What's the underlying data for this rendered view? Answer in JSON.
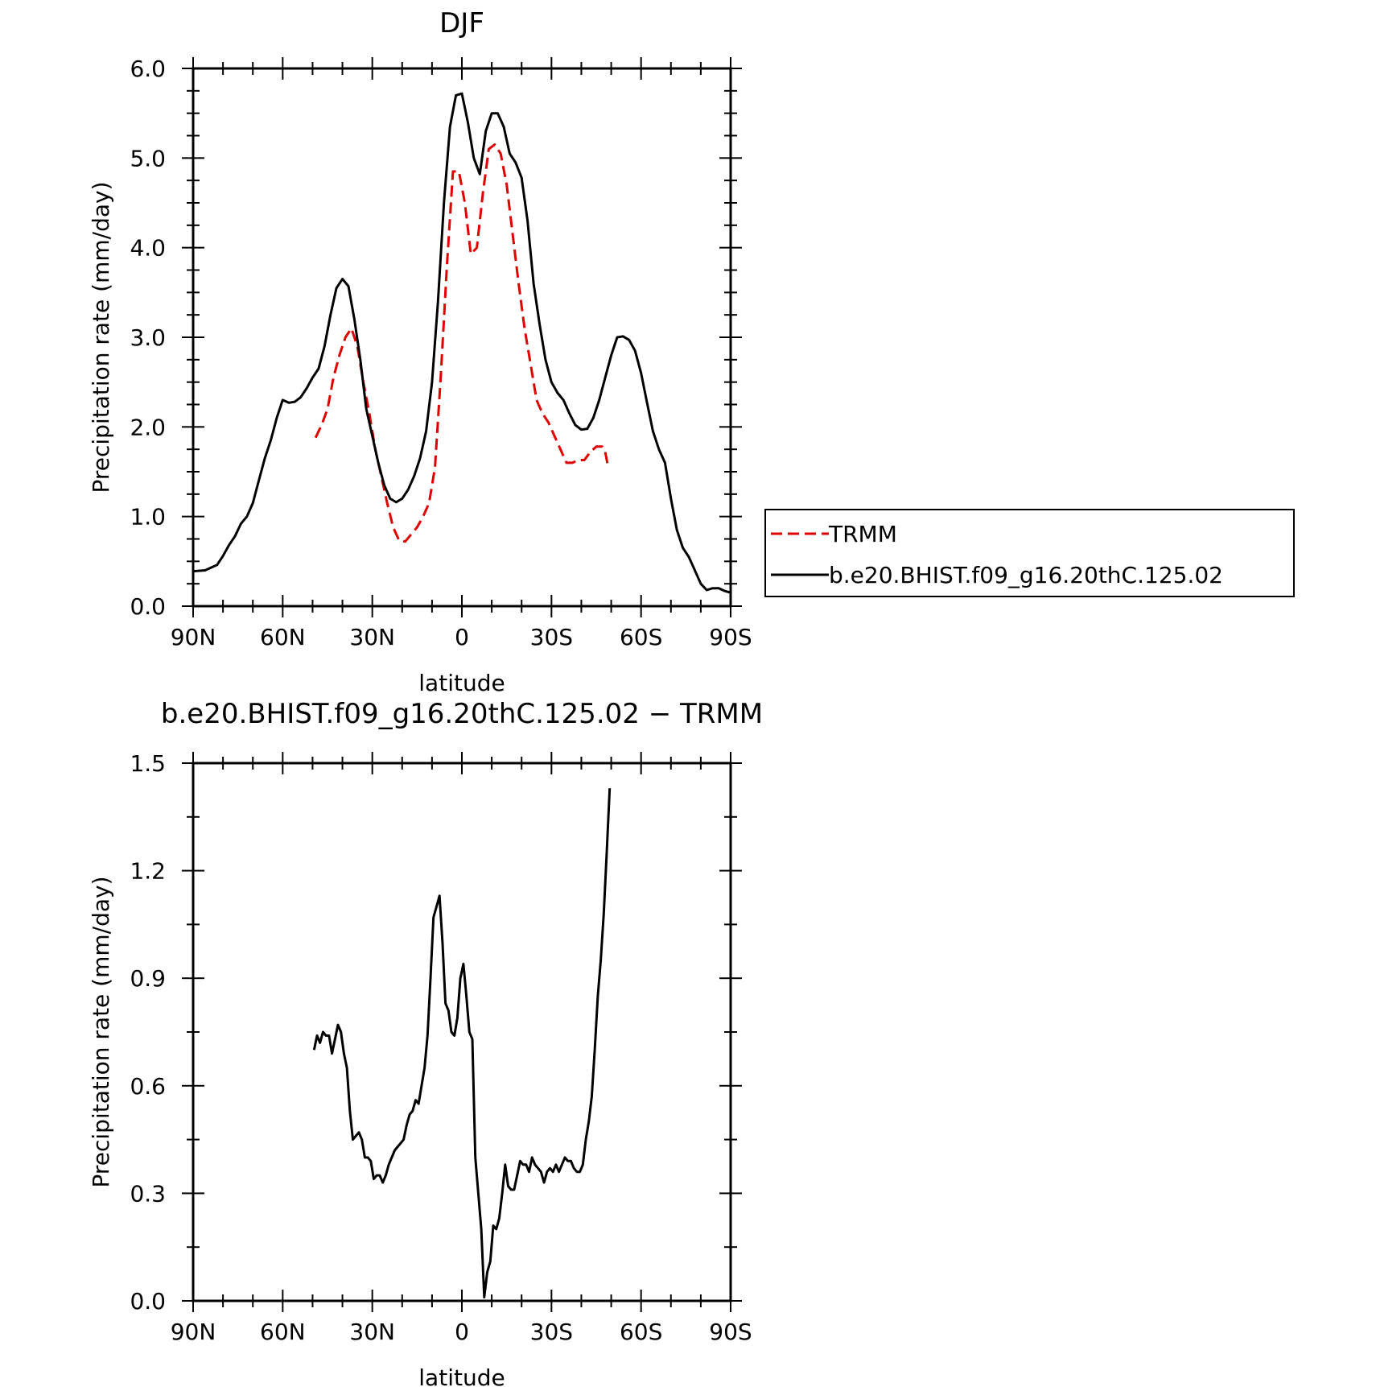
{
  "chart_data": [
    {
      "type": "line",
      "title": "DJF",
      "xlabel": "latitude",
      "ylabel": "Precipitation rate (mm/day)",
      "xlim": [
        90,
        -90
      ],
      "ylim": [
        0,
        6
      ],
      "x_ticks": [
        90,
        60,
        30,
        0,
        -30,
        -60,
        -90
      ],
      "x_tick_labels": [
        "90N",
        "60N",
        "30N",
        "0",
        "30S",
        "60S",
        "90S"
      ],
      "y_ticks": [
        0,
        1,
        2,
        3,
        4,
        5,
        6
      ],
      "y_tick_labels": [
        "0.0",
        "1.0",
        "2.0",
        "3.0",
        "4.0",
        "5.0",
        "6.0"
      ],
      "legend_position": "right",
      "series": [
        {
          "name": "TRMM",
          "color": "#e00000",
          "dash": true,
          "points": [
            [
              49,
              1.88
            ],
            [
              47,
              2.02
            ],
            [
              45,
              2.2
            ],
            [
              43,
              2.55
            ],
            [
              41,
              2.8
            ],
            [
              39,
              3.0
            ],
            [
              37,
              3.1
            ],
            [
              35,
              2.9
            ],
            [
              33,
              2.5
            ],
            [
              31,
              2.15
            ],
            [
              29,
              1.75
            ],
            [
              27,
              1.45
            ],
            [
              25,
              1.15
            ],
            [
              23,
              0.88
            ],
            [
              21,
              0.73
            ],
            [
              19,
              0.72
            ],
            [
              17,
              0.8
            ],
            [
              15,
              0.88
            ],
            [
              13,
              1.0
            ],
            [
              11,
              1.15
            ],
            [
              9,
              1.55
            ],
            [
              7,
              2.6
            ],
            [
              5,
              3.8
            ],
            [
              3,
              4.85
            ],
            [
              1,
              4.85
            ],
            [
              -1,
              4.5
            ],
            [
              -3,
              3.93
            ],
            [
              -5,
              4.0
            ],
            [
              -7,
              4.6
            ],
            [
              -9,
              5.1
            ],
            [
              -11,
              5.15
            ],
            [
              -13,
              5.05
            ],
            [
              -15,
              4.7
            ],
            [
              -17,
              4.15
            ],
            [
              -19,
              3.6
            ],
            [
              -21,
              3.1
            ],
            [
              -23,
              2.7
            ],
            [
              -25,
              2.3
            ],
            [
              -27,
              2.15
            ],
            [
              -29,
              2.05
            ],
            [
              -31,
              1.9
            ],
            [
              -33,
              1.75
            ],
            [
              -35,
              1.6
            ],
            [
              -37,
              1.6
            ],
            [
              -39,
              1.63
            ],
            [
              -41,
              1.63
            ],
            [
              -43,
              1.72
            ],
            [
              -45,
              1.78
            ],
            [
              -47,
              1.78
            ],
            [
              -48,
              1.72
            ],
            [
              -49,
              1.55
            ]
          ]
        },
        {
          "name": "b.e20.BHIST.f09_g16.20thC.125.02",
          "color": "#000000",
          "dash": false,
          "points": [
            [
              90,
              0.39
            ],
            [
              86,
              0.4
            ],
            [
              84,
              0.43
            ],
            [
              82,
              0.46
            ],
            [
              80,
              0.56
            ],
            [
              78,
              0.68
            ],
            [
              76,
              0.78
            ],
            [
              74,
              0.92
            ],
            [
              72,
              1.0
            ],
            [
              70,
              1.15
            ],
            [
              68,
              1.4
            ],
            [
              66,
              1.65
            ],
            [
              64,
              1.85
            ],
            [
              62,
              2.1
            ],
            [
              60,
              2.3
            ],
            [
              58,
              2.27
            ],
            [
              56,
              2.28
            ],
            [
              54,
              2.33
            ],
            [
              52,
              2.43
            ],
            [
              50,
              2.55
            ],
            [
              48,
              2.65
            ],
            [
              46,
              2.9
            ],
            [
              44,
              3.25
            ],
            [
              42,
              3.55
            ],
            [
              40,
              3.65
            ],
            [
              38,
              3.57
            ],
            [
              36,
              3.2
            ],
            [
              34,
              2.75
            ],
            [
              32,
              2.2
            ],
            [
              30,
              1.9
            ],
            [
              28,
              1.6
            ],
            [
              26,
              1.35
            ],
            [
              24,
              1.2
            ],
            [
              22,
              1.16
            ],
            [
              20,
              1.2
            ],
            [
              18,
              1.3
            ],
            [
              16,
              1.45
            ],
            [
              14,
              1.65
            ],
            [
              12,
              1.95
            ],
            [
              10,
              2.5
            ],
            [
              8,
              3.4
            ],
            [
              6,
              4.5
            ],
            [
              4,
              5.35
            ],
            [
              2,
              5.7
            ],
            [
              0,
              5.72
            ],
            [
              -2,
              5.4
            ],
            [
              -4,
              5.0
            ],
            [
              -6,
              4.82
            ],
            [
              -8,
              5.3
            ],
            [
              -10,
              5.5
            ],
            [
              -12,
              5.5
            ],
            [
              -14,
              5.35
            ],
            [
              -16,
              5.05
            ],
            [
              -18,
              4.95
            ],
            [
              -20,
              4.78
            ],
            [
              -22,
              4.3
            ],
            [
              -24,
              3.6
            ],
            [
              -26,
              3.15
            ],
            [
              -28,
              2.75
            ],
            [
              -30,
              2.5
            ],
            [
              -32,
              2.38
            ],
            [
              -34,
              2.3
            ],
            [
              -36,
              2.15
            ],
            [
              -38,
              2.02
            ],
            [
              -40,
              1.97
            ],
            [
              -42,
              1.98
            ],
            [
              -44,
              2.1
            ],
            [
              -46,
              2.3
            ],
            [
              -48,
              2.55
            ],
            [
              -50,
              2.8
            ],
            [
              -52,
              3.0
            ],
            [
              -54,
              3.01
            ],
            [
              -56,
              2.97
            ],
            [
              -58,
              2.85
            ],
            [
              -60,
              2.6
            ],
            [
              -62,
              2.27
            ],
            [
              -64,
              1.95
            ],
            [
              -66,
              1.75
            ],
            [
              -68,
              1.6
            ],
            [
              -70,
              1.2
            ],
            [
              -72,
              0.85
            ],
            [
              -74,
              0.65
            ],
            [
              -76,
              0.55
            ],
            [
              -78,
              0.4
            ],
            [
              -80,
              0.25
            ],
            [
              -82,
              0.18
            ],
            [
              -84,
              0.2
            ],
            [
              -86,
              0.2
            ],
            [
              -88,
              0.17
            ],
            [
              -90,
              0.15
            ]
          ]
        }
      ]
    },
    {
      "type": "line",
      "title": "b.e20.BHIST.f09_g16.20thC.125.02 − TRMM",
      "xlabel": "latitude",
      "ylabel": "Precipitation rate (mm/day)",
      "xlim": [
        90,
        -90
      ],
      "ylim": [
        0,
        1.5
      ],
      "x_ticks": [
        90,
        60,
        30,
        0,
        -30,
        -60,
        -90
      ],
      "x_tick_labels": [
        "90N",
        "60N",
        "30N",
        "0",
        "30S",
        "60S",
        "90S"
      ],
      "y_ticks": [
        0,
        0.3,
        0.6,
        0.9,
        1.2,
        1.5
      ],
      "y_tick_labels": [
        "0.0",
        "0.3",
        "0.6",
        "0.9",
        "1.2",
        "1.5"
      ],
      "series": [
        {
          "color": "#000000",
          "dash": false,
          "points": [
            [
              49.5,
              0.7
            ],
            [
              48.5,
              0.74
            ],
            [
              47.5,
              0.72
            ],
            [
              46.5,
              0.75
            ],
            [
              45.5,
              0.74
            ],
            [
              44.5,
              0.74
            ],
            [
              43.5,
              0.69
            ],
            [
              42.5,
              0.73
            ],
            [
              41.5,
              0.77
            ],
            [
              40.5,
              0.75
            ],
            [
              39.5,
              0.69
            ],
            [
              38.5,
              0.65
            ],
            [
              37.5,
              0.53
            ],
            [
              36.5,
              0.45
            ],
            [
              35.5,
              0.46
            ],
            [
              34.5,
              0.47
            ],
            [
              33.5,
              0.45
            ],
            [
              32.5,
              0.4
            ],
            [
              31.5,
              0.4
            ],
            [
              30.5,
              0.39
            ],
            [
              29.5,
              0.34
            ],
            [
              28.5,
              0.35
            ],
            [
              27.5,
              0.35
            ],
            [
              26.5,
              0.33
            ],
            [
              25.5,
              0.35
            ],
            [
              24.5,
              0.38
            ],
            [
              23.5,
              0.4
            ],
            [
              22.5,
              0.42
            ],
            [
              21.5,
              0.43
            ],
            [
              20.5,
              0.44
            ],
            [
              19.5,
              0.45
            ],
            [
              18.5,
              0.49
            ],
            [
              17.5,
              0.52
            ],
            [
              16.5,
              0.53
            ],
            [
              15.5,
              0.56
            ],
            [
              14.5,
              0.55
            ],
            [
              13.5,
              0.6
            ],
            [
              12.5,
              0.65
            ],
            [
              11.5,
              0.74
            ],
            [
              10.5,
              0.9
            ],
            [
              9.5,
              1.07
            ],
            [
              8.5,
              1.1
            ],
            [
              7.5,
              1.13
            ],
            [
              6.5,
              1.0
            ],
            [
              5.5,
              0.83
            ],
            [
              4.5,
              0.81
            ],
            [
              3.5,
              0.75
            ],
            [
              2.5,
              0.74
            ],
            [
              1.5,
              0.79
            ],
            [
              0.5,
              0.9
            ],
            [
              -0.5,
              0.94
            ],
            [
              -1.5,
              0.85
            ],
            [
              -2.5,
              0.75
            ],
            [
              -3.5,
              0.73
            ],
            [
              -4.5,
              0.4
            ],
            [
              -5.5,
              0.3
            ],
            [
              -6.5,
              0.2
            ],
            [
              -7.5,
              0.01
            ],
            [
              -8.5,
              0.08
            ],
            [
              -9.5,
              0.11
            ],
            [
              -10.5,
              0.21
            ],
            [
              -11.5,
              0.2
            ],
            [
              -12.5,
              0.23
            ],
            [
              -13.5,
              0.3
            ],
            [
              -14.5,
              0.38
            ],
            [
              -15.5,
              0.32
            ],
            [
              -16.5,
              0.31
            ],
            [
              -17.5,
              0.31
            ],
            [
              -18.5,
              0.35
            ],
            [
              -19.5,
              0.39
            ],
            [
              -20.5,
              0.38
            ],
            [
              -21.5,
              0.38
            ],
            [
              -22.5,
              0.36
            ],
            [
              -23.5,
              0.4
            ],
            [
              -24.5,
              0.38
            ],
            [
              -25.5,
              0.37
            ],
            [
              -26.5,
              0.36
            ],
            [
              -27.5,
              0.33
            ],
            [
              -28.5,
              0.36
            ],
            [
              -29.5,
              0.37
            ],
            [
              -30.5,
              0.36
            ],
            [
              -31.5,
              0.38
            ],
            [
              -32.5,
              0.36
            ],
            [
              -33.5,
              0.38
            ],
            [
              -34.5,
              0.4
            ],
            [
              -35.5,
              0.39
            ],
            [
              -36.5,
              0.39
            ],
            [
              -37.5,
              0.37
            ],
            [
              -38.5,
              0.36
            ],
            [
              -39.5,
              0.36
            ],
            [
              -40.5,
              0.38
            ],
            [
              -41.5,
              0.45
            ],
            [
              -42.5,
              0.5
            ],
            [
              -43.5,
              0.57
            ],
            [
              -44.5,
              0.7
            ],
            [
              -45.5,
              0.85
            ],
            [
              -46.5,
              0.95
            ],
            [
              -47.5,
              1.08
            ],
            [
              -48.5,
              1.25
            ],
            [
              -49.5,
              1.43
            ]
          ]
        }
      ]
    }
  ]
}
